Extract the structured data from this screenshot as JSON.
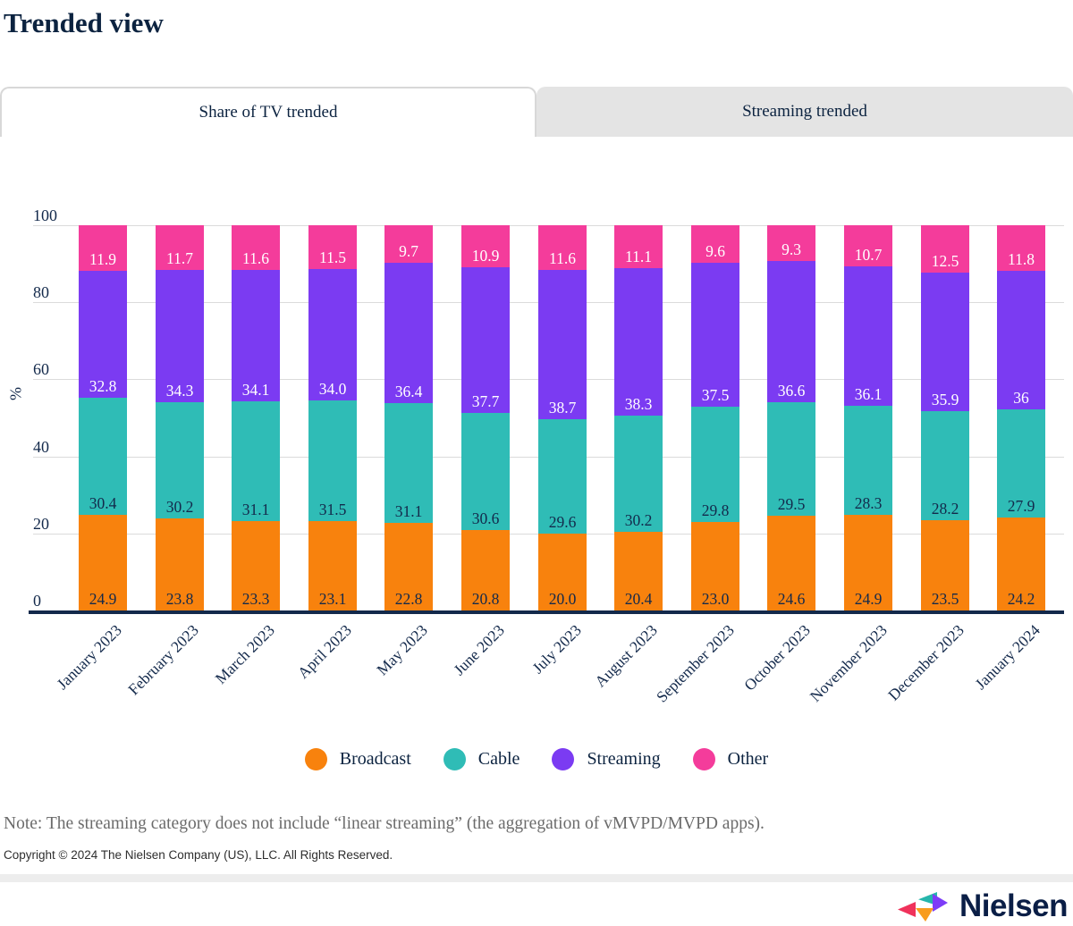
{
  "title": "Trended view",
  "tabs": [
    {
      "label": "Share of TV trended",
      "active": true
    },
    {
      "label": "Streaming trended",
      "active": false
    }
  ],
  "chart_data": {
    "type": "bar",
    "stacked": true,
    "title": "Share of TV trended",
    "xlabel": "",
    "ylabel": "%",
    "ylim": [
      0,
      100
    ],
    "yticks": [
      "0",
      "20",
      "40",
      "60",
      "80",
      "100"
    ],
    "grid": true,
    "legend_position": "bottom",
    "categories": [
      "January 2023",
      "February 2023",
      "March 2023",
      "April 2023",
      "May 2023",
      "June 2023",
      "July 2023",
      "August 2023",
      "September 2023",
      "October 2023",
      "November 2023",
      "December 2023",
      "January 2024"
    ],
    "series": [
      {
        "name": "Broadcast",
        "color": "#F8820D",
        "label_color": "#13294B",
        "values": [
          "24.9",
          "23.8",
          "23.3",
          "23.1",
          "22.8",
          "20.8",
          "20.0",
          "20.4",
          "23.0",
          "24.6",
          "24.9",
          "23.5",
          "24.2"
        ]
      },
      {
        "name": "Cable",
        "color": "#2FBCB6",
        "label_color": "#13294B",
        "values": [
          "30.4",
          "30.2",
          "31.1",
          "31.5",
          "31.1",
          "30.6",
          "29.6",
          "30.2",
          "29.8",
          "29.5",
          "28.3",
          "28.2",
          "27.9"
        ]
      },
      {
        "name": "Streaming",
        "color": "#7B3BF2",
        "label_color": "#FFFFFF",
        "values": [
          "32.8",
          "34.3",
          "34.1",
          "34.0",
          "36.4",
          "37.7",
          "38.7",
          "38.3",
          "37.5",
          "36.6",
          "36.1",
          "35.9",
          "36"
        ]
      },
      {
        "name": "Other",
        "color": "#F43C9B",
        "label_color": "#FFFFFF",
        "values": [
          "11.9",
          "11.7",
          "11.6",
          "11.5",
          "9.7",
          "10.9",
          "11.6",
          "11.1",
          "9.6",
          "9.3",
          "10.7",
          "12.5",
          "11.8"
        ]
      }
    ]
  },
  "note": "Note: The streaming category does not include “linear streaming” (the aggregation of vMVPD/MVPD apps).",
  "copyright": "Copyright © 2024 The Nielsen Company (US), LLC. All Rights Reserved.",
  "logo": {
    "wordmark": "Nielsen",
    "mark_colors": {
      "red": "#F0325B",
      "teal": "#26B6AC",
      "purple": "#7D3CF8",
      "orange": "#F89C1E"
    }
  },
  "colors": {
    "title_navy": "#0C2340",
    "axis_navy": "#13294B",
    "gridline": "#DBDBDB",
    "inactive_tab": "#E4E4E4",
    "note_gray": "#6B6B6B"
  }
}
